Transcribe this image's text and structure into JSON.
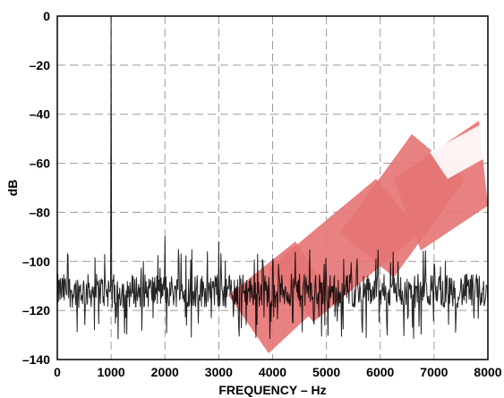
{
  "chart_data": {
    "type": "line",
    "title": "",
    "xlabel": "FREQUENCY – Hz",
    "ylabel": "dB",
    "xlim": [
      0,
      8000
    ],
    "ylim": [
      -140,
      0
    ],
    "x_ticks": [
      0,
      1000,
      2000,
      3000,
      4000,
      5000,
      6000,
      7000,
      8000
    ],
    "x_tick_labels": [
      "0",
      "1000",
      "2000",
      "3000",
      "4000",
      "5000",
      "6000",
      "7000",
      "8000"
    ],
    "y_ticks": [
      0,
      -20,
      -40,
      -60,
      -80,
      -100,
      -120,
      -140
    ],
    "y_tick_labels": [
      "0",
      "–20",
      "–40",
      "–60",
      "–80",
      "–100",
      "–120",
      "–140"
    ],
    "grid": "dashed",
    "series": [
      {
        "color": "#000000",
        "noise_floor_db": -112,
        "noise_floor_range_db": [
          -132,
          -95
        ],
        "peaks": [
          {
            "x": 1000,
            "y": 0
          },
          {
            "x": 2000,
            "y": -90
          },
          {
            "x": 3000,
            "y": -92
          }
        ]
      }
    ],
    "watermark_text": "EPA",
    "colors": {
      "watermark": "#e57373",
      "grid": "#9a9a9a",
      "trace": "#000000"
    }
  }
}
